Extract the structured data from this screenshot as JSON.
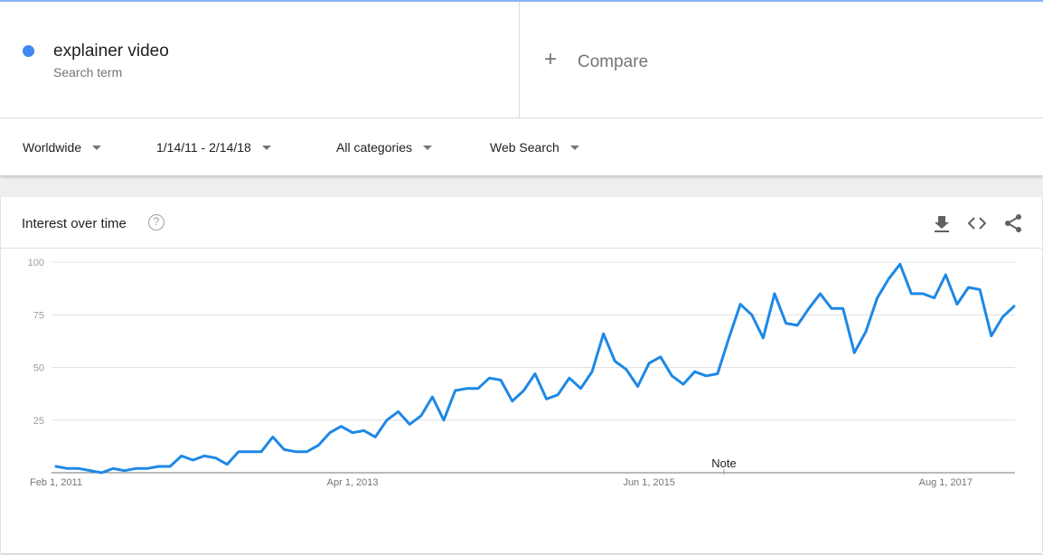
{
  "search_term": {
    "name": "explainer video",
    "subtitle": "Search term",
    "color": "#4285f4"
  },
  "compare": {
    "label": "Compare"
  },
  "filters": {
    "region": "Worldwide",
    "date_range": "1/14/11 - 2/14/18",
    "category": "All categories",
    "search_type": "Web Search"
  },
  "card": {
    "title": "Interest over time",
    "icons": [
      "help-icon",
      "download-icon",
      "embed-icon",
      "share-icon"
    ]
  },
  "chart_data": {
    "type": "line",
    "title": "",
    "xlabel": "",
    "ylabel": "",
    "x_tick_labels": [
      "Feb 1, 2011",
      "Apr 1, 2013",
      "Jun 1, 2015",
      "Aug 1, 2017"
    ],
    "yticks": [
      25,
      50,
      75,
      100
    ],
    "ylim": [
      0,
      100
    ],
    "grid": true,
    "annotation": "Note",
    "series": [
      {
        "color": "#1e88e5",
        "x_start": "2011-02",
        "interval": "month",
        "values": [
          3,
          2,
          2,
          1,
          0,
          2,
          1,
          2,
          2,
          3,
          3,
          8,
          6,
          8,
          7,
          4,
          10,
          10,
          10,
          17,
          11,
          10,
          10,
          13,
          19,
          22,
          19,
          20,
          17,
          25,
          29,
          23,
          27,
          36,
          25,
          39,
          40,
          40,
          45,
          44,
          34,
          39,
          47,
          35,
          37,
          45,
          40,
          48,
          66,
          53,
          49,
          41,
          52,
          55,
          46,
          42,
          48,
          46,
          47,
          64,
          80,
          75,
          64,
          85,
          71,
          70,
          78,
          85,
          78,
          78,
          57,
          67,
          83,
          92,
          99,
          85,
          85,
          83,
          94,
          80,
          88,
          87,
          65,
          74,
          79
        ]
      }
    ]
  }
}
